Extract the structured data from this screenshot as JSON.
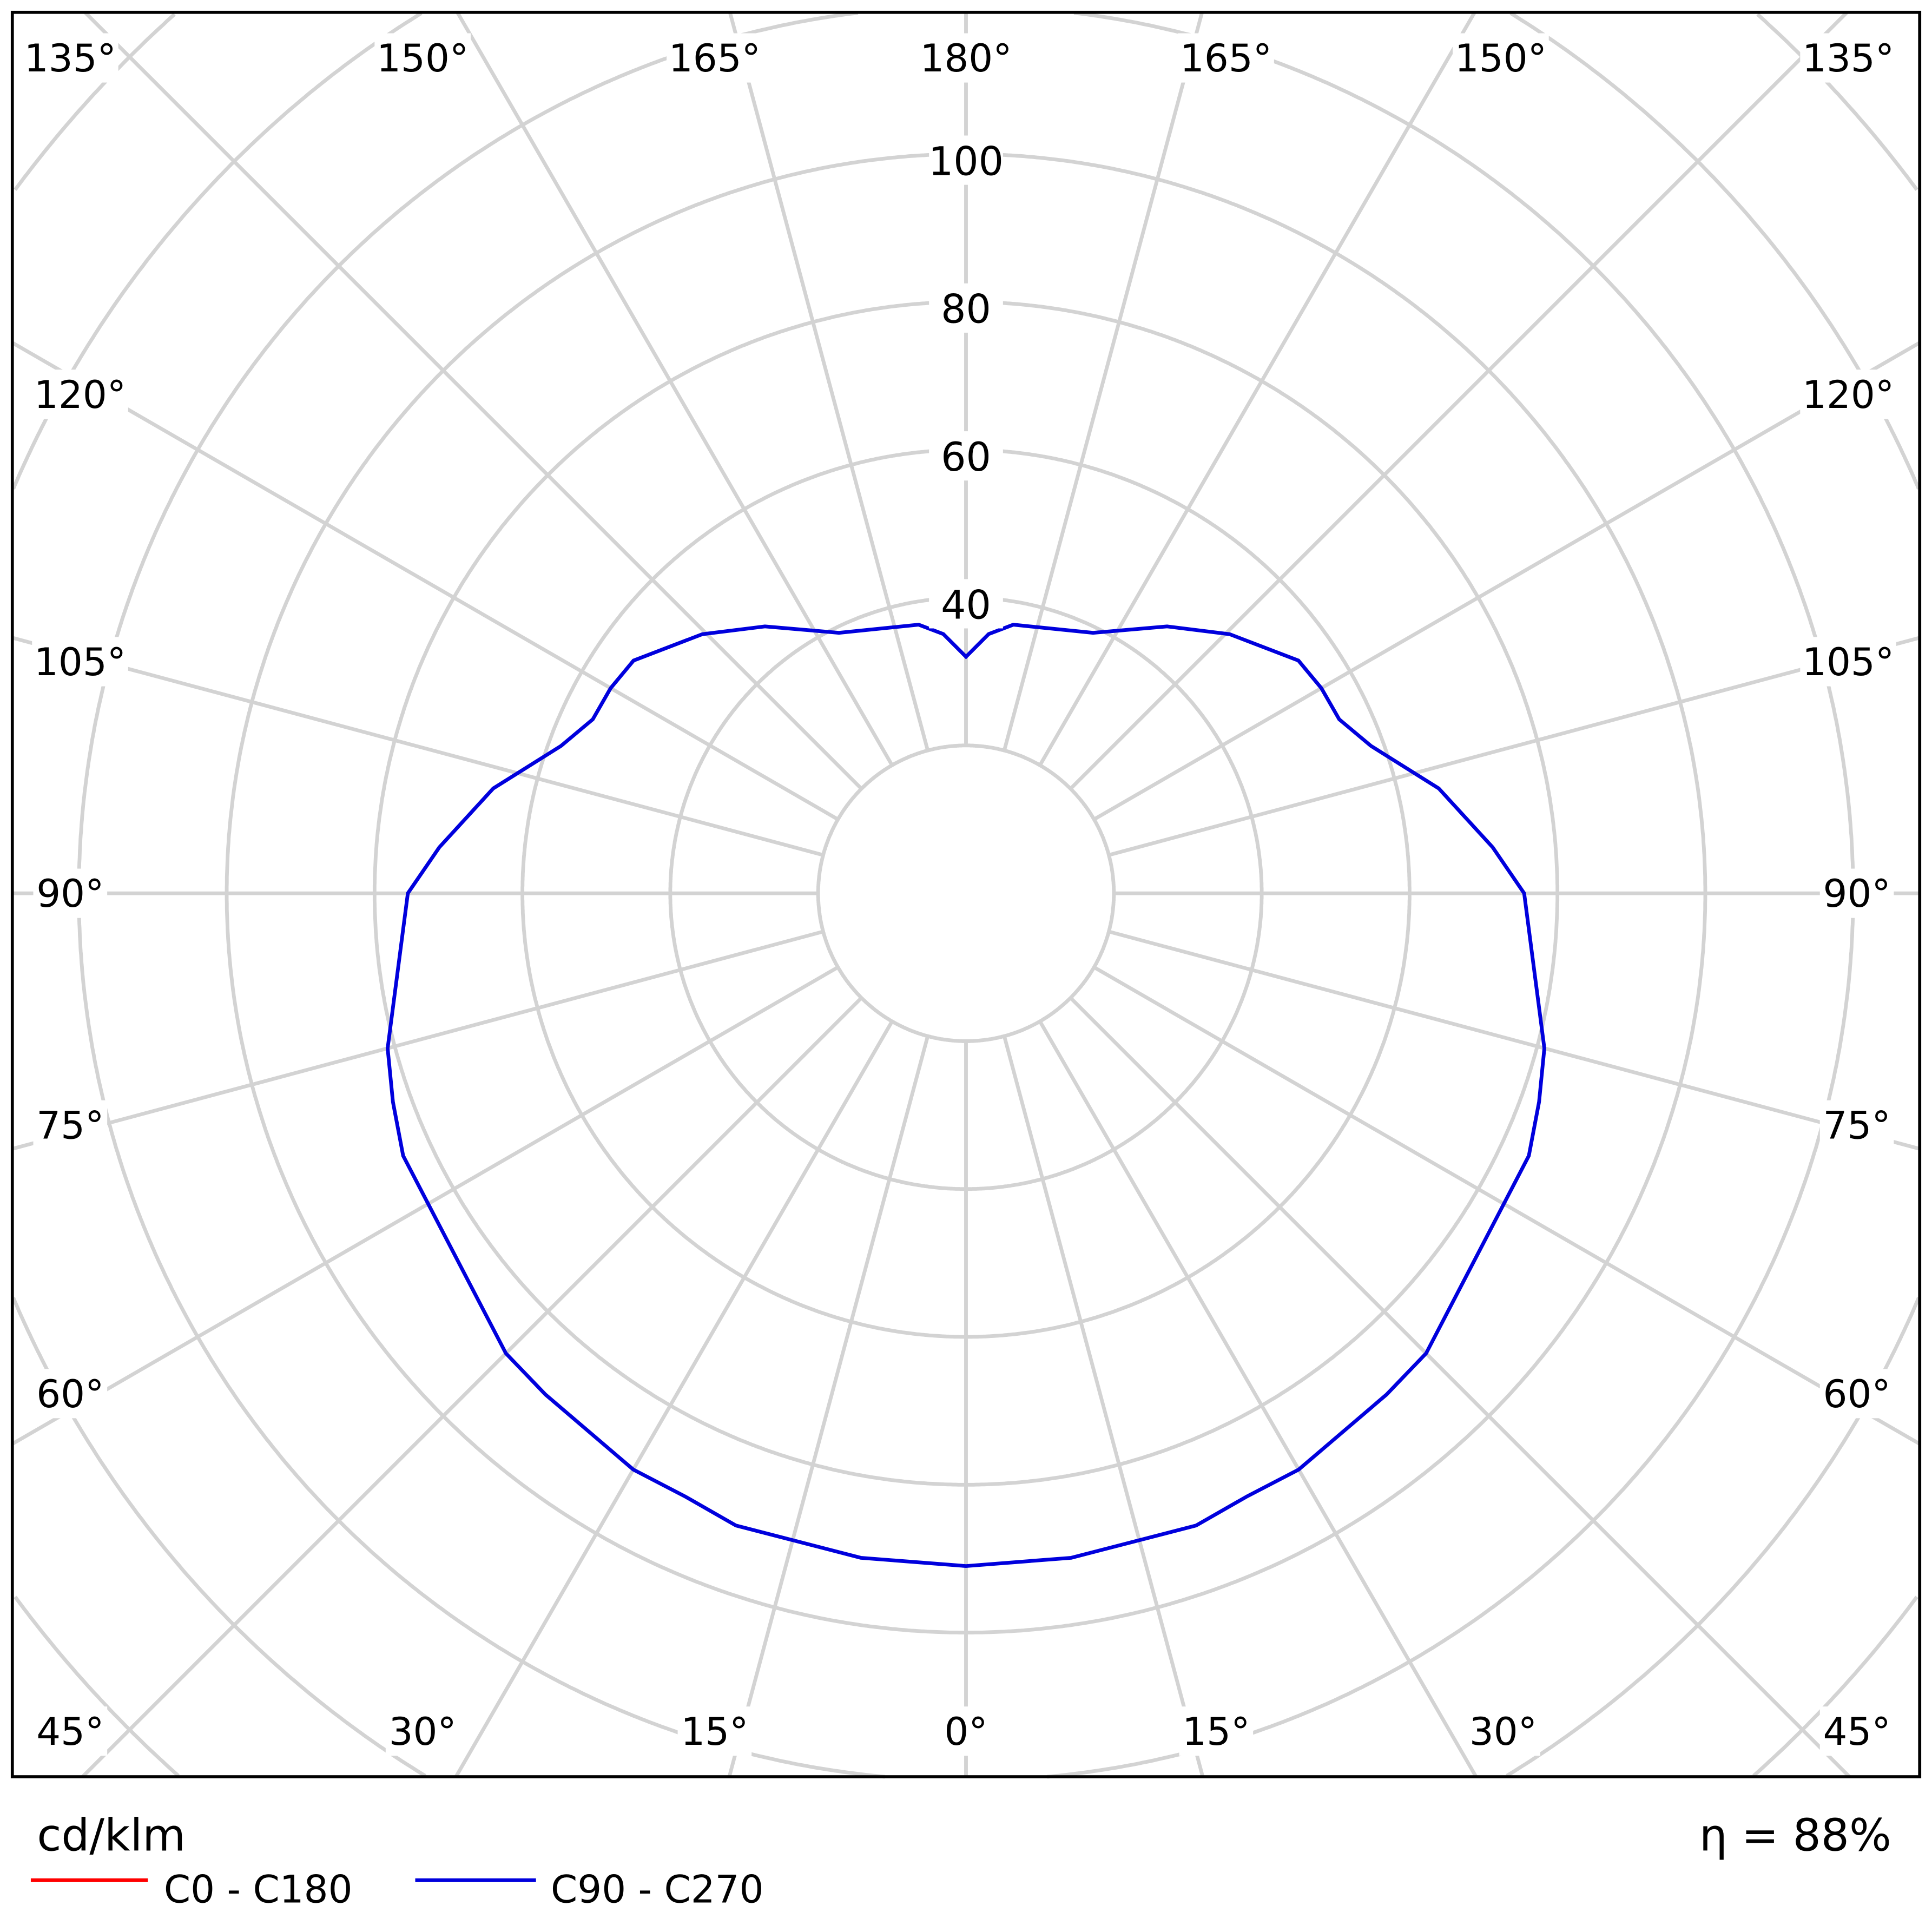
{
  "chart_data": {
    "type": "polar-line",
    "unit_label": "cd/klm",
    "efficiency_label": "η = 88%",
    "radial_ticks": [
      100,
      80,
      60,
      40
    ],
    "radial_grid_step": 20,
    "angle_ticks": {
      "top": [
        "135°",
        "150°",
        "165°",
        "180°",
        "165°",
        "150°",
        "135°"
      ],
      "left": [
        "120°",
        "105°",
        "90°",
        "75°",
        "60°"
      ],
      "right": [
        "120°",
        "105°",
        "90°",
        "75°",
        "60°"
      ],
      "bottom": [
        "45°",
        "30°",
        "15°",
        "0°",
        "15°",
        "30°",
        "45°"
      ]
    },
    "grid": true,
    "grid_color": "#d3d3d3",
    "legend": [
      {
        "name": "C0 - C180",
        "color": "#ff0000"
      },
      {
        "name": "C90 - C270",
        "color": "#0000dd"
      }
    ],
    "legend_placement": "bottom-left",
    "series": [
      {
        "name": "C90 - C270",
        "color": "#0000dd",
        "symmetric": true,
        "gamma_deg": [
          0,
          9,
          20,
          25,
          30,
          40,
          45,
          65,
          70,
          75,
          90,
          95,
          102.5,
          110,
          115,
          120,
          125,
          134.5,
          143,
          154,
          170,
          175,
          180
        ],
        "values": [
          91,
          91,
          91,
          90,
          90,
          88.5,
          88,
          84,
          82.5,
          81,
          75.5,
          71.5,
          65.5,
          58.3,
          55.7,
          55.5,
          54.9,
          50,
          45.2,
          39.2,
          36.9,
          35.2,
          32
        ]
      }
    ]
  }
}
